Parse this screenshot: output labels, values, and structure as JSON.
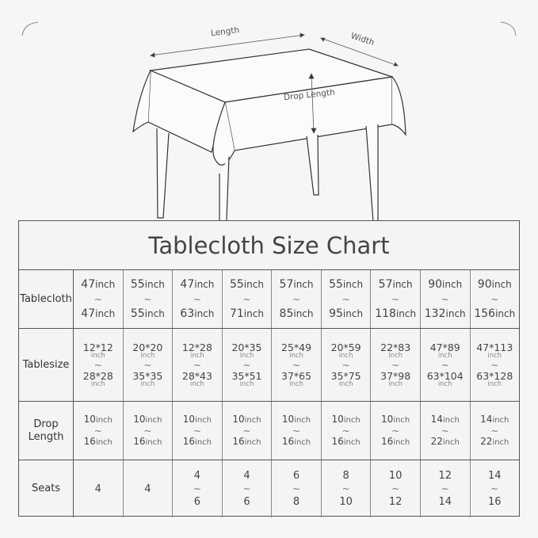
{
  "diagram": {
    "length_label": "Length",
    "width_label": "Width",
    "drop_label": "Drop Length"
  },
  "title": "Tablecloth Size Chart",
  "rows": {
    "tablecloth": {
      "label": "Tablecloth",
      "unit": "inch",
      "cells": [
        [
          "47",
          "47"
        ],
        [
          "55",
          "55"
        ],
        [
          "47",
          "63"
        ],
        [
          "55",
          "71"
        ],
        [
          "57",
          "85"
        ],
        [
          "55",
          "95"
        ],
        [
          "57",
          "118"
        ],
        [
          "90",
          "132"
        ],
        [
          "90",
          "156"
        ]
      ]
    },
    "tablesize": {
      "label": "Tablesize",
      "unit": "inch",
      "cells": [
        [
          "12*12",
          "28*28"
        ],
        [
          "20*20",
          "35*35"
        ],
        [
          "12*28",
          "28*43"
        ],
        [
          "20*35",
          "35*51"
        ],
        [
          "25*49",
          "37*65"
        ],
        [
          "20*59",
          "35*75"
        ],
        [
          "22*83",
          "37*98"
        ],
        [
          "47*89",
          "63*104"
        ],
        [
          "47*113",
          "63*128"
        ]
      ]
    },
    "drop": {
      "label": "Drop Length",
      "unit": "inch",
      "cells": [
        [
          "10",
          "16"
        ],
        [
          "10",
          "16"
        ],
        [
          "10",
          "16"
        ],
        [
          "10",
          "16"
        ],
        [
          "10",
          "16"
        ],
        [
          "10",
          "16"
        ],
        [
          "10",
          "16"
        ],
        [
          "14",
          "22"
        ],
        [
          "14",
          "22"
        ]
      ]
    },
    "seats": {
      "label": "Seats",
      "cells": [
        [
          "4"
        ],
        [
          "4"
        ],
        [
          "4",
          "6"
        ],
        [
          "4",
          "6"
        ],
        [
          "6",
          "8"
        ],
        [
          "8",
          "10"
        ],
        [
          "10",
          "12"
        ],
        [
          "12",
          "14"
        ],
        [
          "14",
          "16"
        ]
      ]
    }
  },
  "range_symbol": "~"
}
